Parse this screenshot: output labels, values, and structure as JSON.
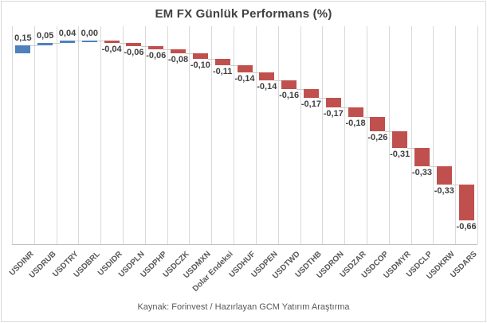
{
  "title": "EM FX Günlük Performans (%)",
  "footer": "Kaynak: Forinvest / Hazırlayan GCM Yatırım Araştırma",
  "chart_data": {
    "type": "bar",
    "subtype": "waterfall",
    "title": "EM FX Günlük Performans (%)",
    "xlabel": "",
    "ylabel": "",
    "ylim": [
      -3.5,
      0.5
    ],
    "grid": "vertical-only",
    "legend": "none",
    "decimal_separator": ",",
    "categories": [
      "USDINR",
      "USDRUB",
      "USDTRY",
      "USDBRL",
      "USDIDR",
      "USDPLN",
      "USDPHP",
      "USDCZK",
      "USDMXN",
      "Dolar Endeksi",
      "USDHUF",
      "USDPEN",
      "USDTWD",
      "USDTHB",
      "USDRON",
      "USDZAR",
      "USDCOP",
      "USDMYR",
      "USDCLP",
      "USDKRW",
      "USDARS"
    ],
    "values": [
      0.15,
      0.05,
      0.04,
      0.0,
      -0.04,
      -0.06,
      -0.06,
      -0.08,
      -0.1,
      -0.11,
      -0.14,
      -0.14,
      -0.16,
      -0.17,
      -0.17,
      -0.18,
      -0.26,
      -0.31,
      -0.33,
      -0.33,
      -0.66
    ],
    "value_labels": [
      "0,15",
      "0,05",
      "0,04",
      "0,00",
      "-0,04",
      "-0,06",
      "-0,06",
      "-0,08",
      "-0,10",
      "-0,11",
      "-0,14",
      "-0,14",
      "-0,16",
      "-0,17",
      "-0,17",
      "-0,18",
      "-0,26",
      "-0,31",
      "-0,33",
      "-0,33",
      "-0,66"
    ],
    "colors": {
      "positive_bar": "#4F81BD",
      "negative_bar": "#C0504D",
      "gridline": "#D9D9D9",
      "axis_line": "#BFBFBF",
      "connector": "#CCCCCC",
      "title_text": "#404040",
      "value_label_text": "#404040",
      "axis_label_text": "#595959",
      "footer_text": "#595959",
      "background": "#FFFFFF",
      "border": "#D9D9D9"
    }
  }
}
